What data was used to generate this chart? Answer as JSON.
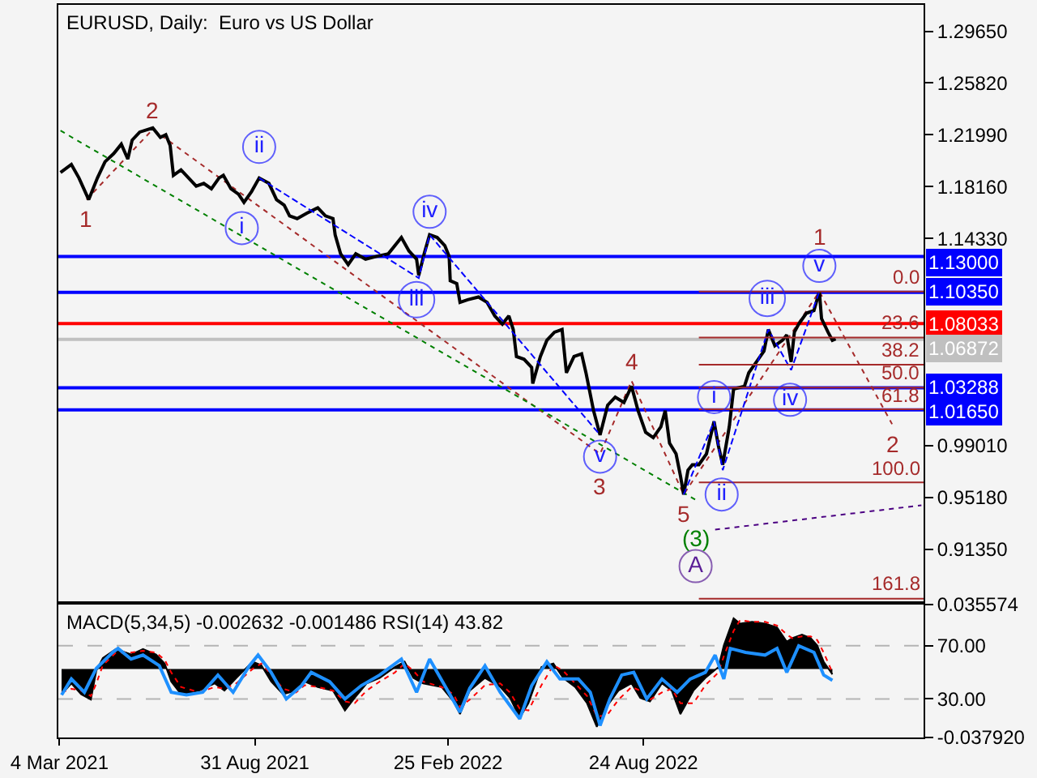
{
  "chart_data": [
    {
      "type": "line",
      "title": "EURUSD, Daily:  Euro vs US Dollar",
      "xlim": [
        "2021-03-03",
        "2023-05-09"
      ],
      "ylim": [
        0.875,
        1.316
      ],
      "yticks": [
        {
          "value": 1.2965,
          "label": "1.29650"
        },
        {
          "value": 1.2582,
          "label": "1.25820"
        },
        {
          "value": 1.2199,
          "label": "1.21990"
        },
        {
          "value": 1.1816,
          "label": "1.18160"
        },
        {
          "value": 1.1433,
          "label": "1.14330"
        },
        {
          "value": 0.9901,
          "label": "0.99010"
        },
        {
          "value": 0.9518,
          "label": "0.95180"
        },
        {
          "value": 0.9135,
          "label": "0.91350"
        }
      ],
      "tick_labels": "y",
      "series": [
        {
          "color": "#a52a2a",
          "line_style": "dotted",
          "x": [
            "2021-03-29",
            "2021-05-29",
            "2022-07-15",
            "2022-08-13",
            "2022-09-30",
            "2023-02-02",
            "2023-04-10"
          ],
          "values": [
            1.172,
            1.224,
            0.984,
            1.038,
            0.954,
            1.104,
            1.006
          ]
        },
        {
          "color": "#008000",
          "line_style": "dotted",
          "x": [
            "2021-03-05",
            "2022-10-11"
          ],
          "values": [
            1.223,
            0.95
          ]
        },
        {
          "color": "#000000",
          "x": [
            "2021-03-05",
            "2021-03-15",
            "2021-03-22",
            "2021-03-31",
            "2021-04-08",
            "2021-04-15",
            "2021-04-23",
            "2021-04-30",
            "2021-05-06",
            "2021-05-10",
            "2021-05-17",
            "2021-05-29",
            "2021-06-05",
            "2021-06-10",
            "2021-06-14",
            "2021-06-17",
            "2021-06-24",
            "2021-07-01",
            "2021-07-08",
            "2021-07-15",
            "2021-07-22",
            "2021-07-29",
            "2021-08-02",
            "2021-08-09",
            "2021-08-16",
            "2021-08-21",
            "2021-08-28",
            "2021-09-04",
            "2021-09-13",
            "2021-09-20",
            "2021-09-27",
            "2021-10-02",
            "2021-10-09",
            "2021-10-18",
            "2021-10-28",
            "2021-11-04",
            "2021-11-11",
            "2021-11-13",
            "2021-11-18",
            "2021-11-25",
            "2021-12-02",
            "2021-12-11",
            "2021-12-21",
            "2022-01-01",
            "2022-01-13",
            "2022-01-20",
            "2022-01-27",
            "2022-01-29",
            "2022-02-03",
            "2022-02-08",
            "2022-02-15",
            "2022-02-22",
            "2022-02-26",
            "2022-02-27",
            "2022-03-05",
            "2022-03-08",
            "2022-03-15",
            "2022-03-25",
            "2022-04-02",
            "2022-04-09",
            "2022-04-16",
            "2022-04-22",
            "2022-04-26",
            "2022-04-29",
            "2022-05-06",
            "2022-05-13",
            "2022-05-14",
            "2022-05-21",
            "2022-05-27",
            "2022-06-03",
            "2022-06-10",
            "2022-06-14",
            "2022-06-21",
            "2022-06-28",
            "2022-07-02",
            "2022-07-09",
            "2022-07-15",
            "2022-07-22",
            "2022-07-29",
            "2022-08-06",
            "2022-08-13",
            "2022-08-19",
            "2022-08-26",
            "2022-09-02",
            "2022-09-09",
            "2022-09-13",
            "2022-09-17",
            "2022-09-23",
            "2022-09-27",
            "2022-09-30",
            "2022-10-04",
            "2022-10-08",
            "2022-10-14",
            "2022-10-21",
            "2022-10-28",
            "2022-11-01",
            "2022-11-05",
            "2022-11-11",
            "2022-11-15",
            "2022-11-25",
            "2022-11-29",
            "2022-12-06",
            "2022-12-13",
            "2022-12-17",
            "2022-12-23",
            "2022-12-30",
            "2023-01-03",
            "2023-01-07",
            "2023-01-10",
            "2023-01-14",
            "2023-01-21",
            "2023-01-28",
            "2023-02-02",
            "2023-02-04",
            "2023-02-10",
            "2023-02-14",
            "2023-02-17"
          ],
          "values": [
            1.192,
            1.198,
            1.188,
            1.172,
            1.188,
            1.2,
            1.206,
            1.213,
            1.202,
            1.216,
            1.222,
            1.225,
            1.218,
            1.22,
            1.212,
            1.19,
            1.194,
            1.188,
            1.182,
            1.184,
            1.18,
            1.188,
            1.19,
            1.18,
            1.176,
            1.17,
            1.178,
            1.188,
            1.184,
            1.172,
            1.168,
            1.16,
            1.158,
            1.162,
            1.166,
            1.16,
            1.158,
            1.146,
            1.132,
            1.124,
            1.132,
            1.128,
            1.13,
            1.132,
            1.144,
            1.134,
            1.128,
            1.116,
            1.132,
            1.146,
            1.144,
            1.138,
            1.13,
            1.112,
            1.11,
            1.096,
            1.098,
            1.1,
            1.096,
            1.086,
            1.08,
            1.086,
            1.076,
            1.056,
            1.054,
            1.048,
            1.036,
            1.056,
            1.068,
            1.074,
            1.076,
            1.044,
            1.056,
            1.058,
            1.044,
            1.016,
            0.998,
            1.02,
            1.026,
            1.022,
            1.034,
            1.016,
            1.0,
            0.996,
            1.004,
            1.016,
            0.992,
            0.984,
            0.968,
            0.954,
            0.972,
            0.976,
            0.976,
            0.984,
            1.008,
            0.99,
            0.976,
            1.004,
            1.032,
            1.034,
            1.044,
            1.052,
            1.06,
            1.076,
            1.064,
            1.068,
            1.072,
            1.052,
            1.074,
            1.08,
            1.088,
            1.09,
            1.104,
            1.084,
            1.074,
            1.068,
            1.069
          ]
        },
        {
          "color": "#0000ff",
          "line_style": "dashed",
          "x": [
            "2021-09-04",
            "2022-01-29",
            "2022-02-08",
            "2022-07-15"
          ],
          "values": [
            1.188,
            1.114,
            1.146,
            0.998
          ]
        },
        {
          "color": "#0000ff",
          "line_style": "dashed",
          "x": [
            "2022-09-30",
            "2022-10-28",
            "2022-11-05",
            "2022-12-17",
            "2023-01-07",
            "2023-02-02"
          ],
          "values": [
            0.954,
            1.008,
            0.972,
            1.076,
            1.046,
            1.104
          ]
        },
        {
          "color": "#4b0082",
          "line_style": "dotted",
          "x": [
            "2022-10-29",
            "2023-05-07"
          ],
          "values": [
            0.928,
            0.946
          ]
        },
        {
          "name": "0.0",
          "color": "#a52a2a",
          "x": [
            "2022-10-14",
            "2023-05-09"
          ],
          "values": [
            1.104,
            1.104
          ]
        },
        {
          "name": "23.6",
          "color": "#a52a2a",
          "x": [
            "2022-10-14",
            "2023-05-09"
          ],
          "values": [
            1.07,
            1.07
          ]
        },
        {
          "name": "38.2",
          "color": "#a52a2a",
          "x": [
            "2022-10-14",
            "2023-05-09"
          ],
          "values": [
            1.05,
            1.05
          ]
        },
        {
          "name": "50.0",
          "color": "#a52a2a",
          "x": [
            "2022-10-14",
            "2023-05-09"
          ],
          "values": [
            1.033,
            1.033
          ]
        },
        {
          "name": "61.8",
          "color": "#a52a2a",
          "x": [
            "2022-10-14",
            "2023-05-09"
          ],
          "values": [
            1.017,
            1.017
          ]
        },
        {
          "name": "100.0",
          "color": "#a52a2a",
          "x": [
            "2022-10-14",
            "2023-05-09"
          ],
          "values": [
            0.963,
            0.963
          ]
        },
        {
          "name": "161.8",
          "color": "#a52a2a",
          "x": [
            "2022-10-14",
            "2023-05-09"
          ],
          "values": [
            0.877,
            0.877
          ]
        },
        {
          "type": "scatter",
          "marker": "circle",
          "color": "#2020ff",
          "x": [
            "2021-08-19",
            "2021-09-04",
            "2022-01-27",
            "2022-02-08",
            "2022-07-15",
            "2022-10-28",
            "2022-11-04",
            "2022-12-16",
            "2023-01-06",
            "2023-02-02"
          ],
          "values": [
            1.151,
            1.211,
            1.098,
            1.163,
            0.982,
            1.026,
            0.954,
            1.099,
            1.024,
            1.123
          ],
          "value_labels": [
            "i",
            "ii",
            "iii",
            "iv",
            "v",
            "i",
            "ii",
            "iii",
            "iv",
            "v"
          ]
        },
        {
          "type": "scatter",
          "marker": "circle",
          "color": "#5a1e96",
          "x": [
            "2022-10-11"
          ],
          "values": [
            0.901
          ],
          "value_labels": [
            "A"
          ]
        }
      ],
      "ref_lines": [
        {
          "axis": "y",
          "value": 1.13,
          "label": "1.13000",
          "color": "#0000ff"
        },
        {
          "axis": "y",
          "value": 1.1035,
          "label": "1.10350",
          "color": "#0000ff"
        },
        {
          "axis": "y",
          "value": 1.08033,
          "label": "1.08033",
          "color": "#ff0000"
        },
        {
          "axis": "y",
          "value": 1.06872,
          "label": "1.06872",
          "color": "#c0c0c0"
        },
        {
          "axis": "y",
          "value": 1.03288,
          "label": "1.03288",
          "color": "#0000ff"
        },
        {
          "axis": "y",
          "value": 1.0165,
          "label": "1.01650",
          "color": "#0000ff"
        }
      ],
      "annotations": [
        {
          "text": "1",
          "x": "2021-03-29",
          "y": 1.172
        },
        {
          "text": "2",
          "x": "2021-05-29",
          "y": 1.224
        },
        {
          "text": "3",
          "x": "2022-07-15",
          "y": 0.984
        },
        {
          "text": "4",
          "x": "2022-08-13",
          "y": 1.038
        },
        {
          "text": "5",
          "x": "2022-09-30",
          "y": 0.954
        },
        {
          "text": "(3)",
          "x": "2022-10-11",
          "y": 0.95
        },
        {
          "text": "1",
          "x": "2023-02-02",
          "y": 1.104
        },
        {
          "text": "2",
          "x": "2023-04-10",
          "y": 1.006
        }
      ]
    },
    {
      "type": "area",
      "title": "MACD(5,34,5) -0.002632 -0.001486 RSI(14) 43.82",
      "xlim": [
        "2021-03-03",
        "2023-05-09"
      ],
      "xticks": [
        {
          "value": "2021-03-04",
          "label": "4 Mar 2021"
        },
        {
          "value": "2021-08-31",
          "label": "31 Aug 2021"
        },
        {
          "value": "2022-02-25",
          "label": "25 Feb 2022"
        },
        {
          "value": "2022-08-24",
          "label": "24 Aug 2022"
        }
      ],
      "ylim": [
        -0.03792,
        0.035574
      ],
      "yticks": [
        {
          "value": 0.035574,
          "label": "0.035574"
        },
        {
          "value": -0.03792,
          "label": "-0.037920"
        }
      ],
      "y2lim": [
        1,
        101
      ],
      "y2ticks": [
        {
          "value": 70,
          "label": "70.00"
        },
        {
          "value": 30,
          "label": "30.00"
        }
      ],
      "series": [
        {
          "color": "#000000",
          "x": [
            "2021-03-06",
            "2021-03-15",
            "2021-03-24",
            "2021-04-02",
            "2021-04-07",
            "2021-04-13",
            "2021-04-25",
            "2021-05-09",
            "2021-05-20",
            "2021-06-01",
            "2021-06-09",
            "2021-06-15",
            "2021-06-24",
            "2021-07-11",
            "2021-07-25",
            "2021-08-03",
            "2021-08-14",
            "2021-08-29",
            "2021-09-06",
            "2021-09-15",
            "2021-09-26",
            "2021-10-08",
            "2021-10-16",
            "2021-10-28",
            "2021-11-11",
            "2021-11-22",
            "2021-12-01",
            "2021-12-12",
            "2021-12-24",
            "2022-01-07",
            "2022-01-16",
            "2022-01-24",
            "2022-02-02",
            "2022-02-19",
            "2022-03-02",
            "2022-03-08",
            "2022-03-17",
            "2022-03-31",
            "2022-04-14",
            "2022-04-23",
            "2022-05-02",
            "2022-05-10",
            "2022-05-22",
            "2022-06-02",
            "2022-06-11",
            "2022-06-22",
            "2022-07-03",
            "2022-07-12",
            "2022-07-21",
            "2022-08-01",
            "2022-08-13",
            "2022-08-21",
            "2022-08-30",
            "2022-09-10",
            "2022-09-19",
            "2022-09-27",
            "2022-10-09",
            "2022-10-20",
            "2022-11-01",
            "2022-11-06",
            "2022-11-15",
            "2022-11-21",
            "2022-12-02",
            "2022-12-14",
            "2022-12-25",
            "2023-01-03",
            "2023-01-08",
            "2023-01-17",
            "2023-01-25",
            "2023-01-31",
            "2023-02-06",
            "2023-02-14"
          ],
          "values": [
            -0.014,
            -0.008,
            -0.014,
            -0.017,
            -0.001,
            0.006,
            0.011,
            0.008,
            0.011,
            0.008,
            0.003,
            -0.007,
            -0.014,
            -0.012,
            -0.008,
            -0.012,
            -0.005,
            0.004,
            0.002,
            -0.007,
            -0.014,
            -0.012,
            -0.007,
            -0.01,
            -0.012,
            -0.023,
            -0.016,
            -0.008,
            -0.005,
            0.001,
            0.004,
            -0.005,
            -0.008,
            -0.01,
            -0.018,
            -0.025,
            -0.012,
            -0.005,
            -0.01,
            -0.016,
            -0.027,
            -0.019,
            0.001,
            0.003,
            -0.005,
            -0.01,
            -0.019,
            -0.032,
            -0.021,
            -0.012,
            -0.008,
            -0.016,
            -0.018,
            -0.008,
            -0.012,
            -0.025,
            -0.012,
            -0.005,
            0.001,
            0.013,
            0.028,
            0.025,
            0.026,
            0.025,
            0.023,
            0.015,
            0.017,
            0.019,
            0.017,
            0.013,
            0.004,
            -0.003
          ]
        },
        {
          "type": "line",
          "color": "#ff0000",
          "line_style": "dotted",
          "x": [
            "2021-03-06",
            "2021-03-15",
            "2021-03-24",
            "2021-04-02",
            "2021-04-07",
            "2021-04-13",
            "2021-04-25",
            "2021-05-09",
            "2021-05-20",
            "2021-06-01",
            "2021-06-09",
            "2021-06-15",
            "2021-06-24",
            "2021-07-11",
            "2021-07-25",
            "2021-08-03",
            "2021-08-14",
            "2021-08-29",
            "2021-09-06",
            "2021-09-15",
            "2021-09-26",
            "2021-10-08",
            "2021-10-16",
            "2021-10-28",
            "2021-11-11",
            "2021-11-22",
            "2021-12-01",
            "2021-12-12",
            "2021-12-24",
            "2022-01-07",
            "2022-01-16",
            "2022-01-24",
            "2022-02-02",
            "2022-02-19",
            "2022-03-02",
            "2022-03-08",
            "2022-03-17",
            "2022-03-31",
            "2022-04-14",
            "2022-04-23",
            "2022-05-02",
            "2022-05-10",
            "2022-05-22",
            "2022-06-02",
            "2022-06-11",
            "2022-06-22",
            "2022-07-03",
            "2022-07-12",
            "2022-07-21",
            "2022-08-01",
            "2022-08-13",
            "2022-08-21",
            "2022-08-30",
            "2022-09-10",
            "2022-09-19",
            "2022-09-27",
            "2022-10-09",
            "2022-10-20",
            "2022-11-01",
            "2022-11-06",
            "2022-11-15",
            "2022-11-21",
            "2022-12-02",
            "2022-12-14",
            "2022-12-25",
            "2023-01-03",
            "2023-01-08",
            "2023-01-17",
            "2023-01-25",
            "2023-01-31",
            "2023-02-06",
            "2023-02-14"
          ],
          "values": [
            -0.013,
            -0.011,
            -0.012,
            -0.015,
            -0.008,
            0.002,
            0.009,
            0.009,
            0.01,
            0.009,
            0.005,
            -0.002,
            -0.01,
            -0.013,
            -0.01,
            -0.011,
            -0.008,
            0.0,
            0.003,
            -0.003,
            -0.011,
            -0.013,
            -0.009,
            -0.01,
            -0.012,
            -0.018,
            -0.019,
            -0.012,
            -0.007,
            -0.002,
            0.003,
            -0.001,
            -0.007,
            -0.01,
            -0.014,
            -0.021,
            -0.017,
            -0.009,
            -0.008,
            -0.013,
            -0.022,
            -0.023,
            -0.009,
            0.002,
            -0.001,
            -0.008,
            -0.015,
            -0.026,
            -0.026,
            -0.017,
            -0.01,
            -0.012,
            -0.017,
            -0.013,
            -0.011,
            -0.019,
            -0.019,
            -0.009,
            -0.002,
            0.007,
            0.021,
            0.027,
            0.026,
            0.026,
            0.024,
            0.019,
            0.017,
            0.018,
            0.018,
            0.016,
            0.009,
            -0.002
          ]
        },
        {
          "type": "line",
          "axis": "y2",
          "color": "#1e90ff",
          "x": [
            "2021-03-06",
            "2021-03-15",
            "2021-03-27",
            "2021-04-07",
            "2021-04-22",
            "2021-04-27",
            "2021-05-09",
            "2021-05-20",
            "2021-06-04",
            "2021-06-15",
            "2021-06-29",
            "2021-07-14",
            "2021-07-28",
            "2021-08-11",
            "2021-08-26",
            "2021-09-03",
            "2021-09-15",
            "2021-09-29",
            "2021-10-13",
            "2021-10-22",
            "2021-11-08",
            "2021-11-22",
            "2021-12-07",
            "2021-12-24",
            "2022-01-13",
            "2022-01-27",
            "2022-02-08",
            "2022-02-22",
            "2022-03-08",
            "2022-03-17",
            "2022-03-31",
            "2022-04-14",
            "2022-05-02",
            "2022-05-13",
            "2022-05-27",
            "2022-06-08",
            "2022-06-25",
            "2022-07-06",
            "2022-07-15",
            "2022-07-24",
            "2022-08-04",
            "2022-08-15",
            "2022-08-27",
            "2022-09-10",
            "2022-09-24",
            "2022-10-06",
            "2022-10-20",
            "2022-10-29",
            "2022-11-06",
            "2022-11-12",
            "2022-11-26",
            "2022-12-14",
            "2022-12-25",
            "2023-01-03",
            "2023-01-14",
            "2023-01-28",
            "2023-02-06",
            "2023-02-14"
          ],
          "values": [
            33,
            45,
            35,
            53,
            65,
            68,
            60,
            63,
            55,
            35,
            33,
            35,
            48,
            35,
            55,
            63,
            50,
            30,
            40,
            50,
            43,
            30,
            40,
            48,
            60,
            35,
            60,
            40,
            20,
            38,
            55,
            35,
            15,
            40,
            58,
            45,
            45,
            35,
            10,
            30,
            48,
            50,
            30,
            45,
            35,
            45,
            50,
            63,
            45,
            68,
            65,
            63,
            68,
            50,
            70,
            65,
            48,
            44
          ]
        }
      ],
      "ref_lines": [
        {
          "axis": "y2",
          "value": 70,
          "color": "#b4b4b4",
          "line_style": "dashed"
        },
        {
          "axis": "y2",
          "value": 30,
          "color": "#b4b4b4",
          "line_style": "dashed"
        }
      ]
    }
  ]
}
